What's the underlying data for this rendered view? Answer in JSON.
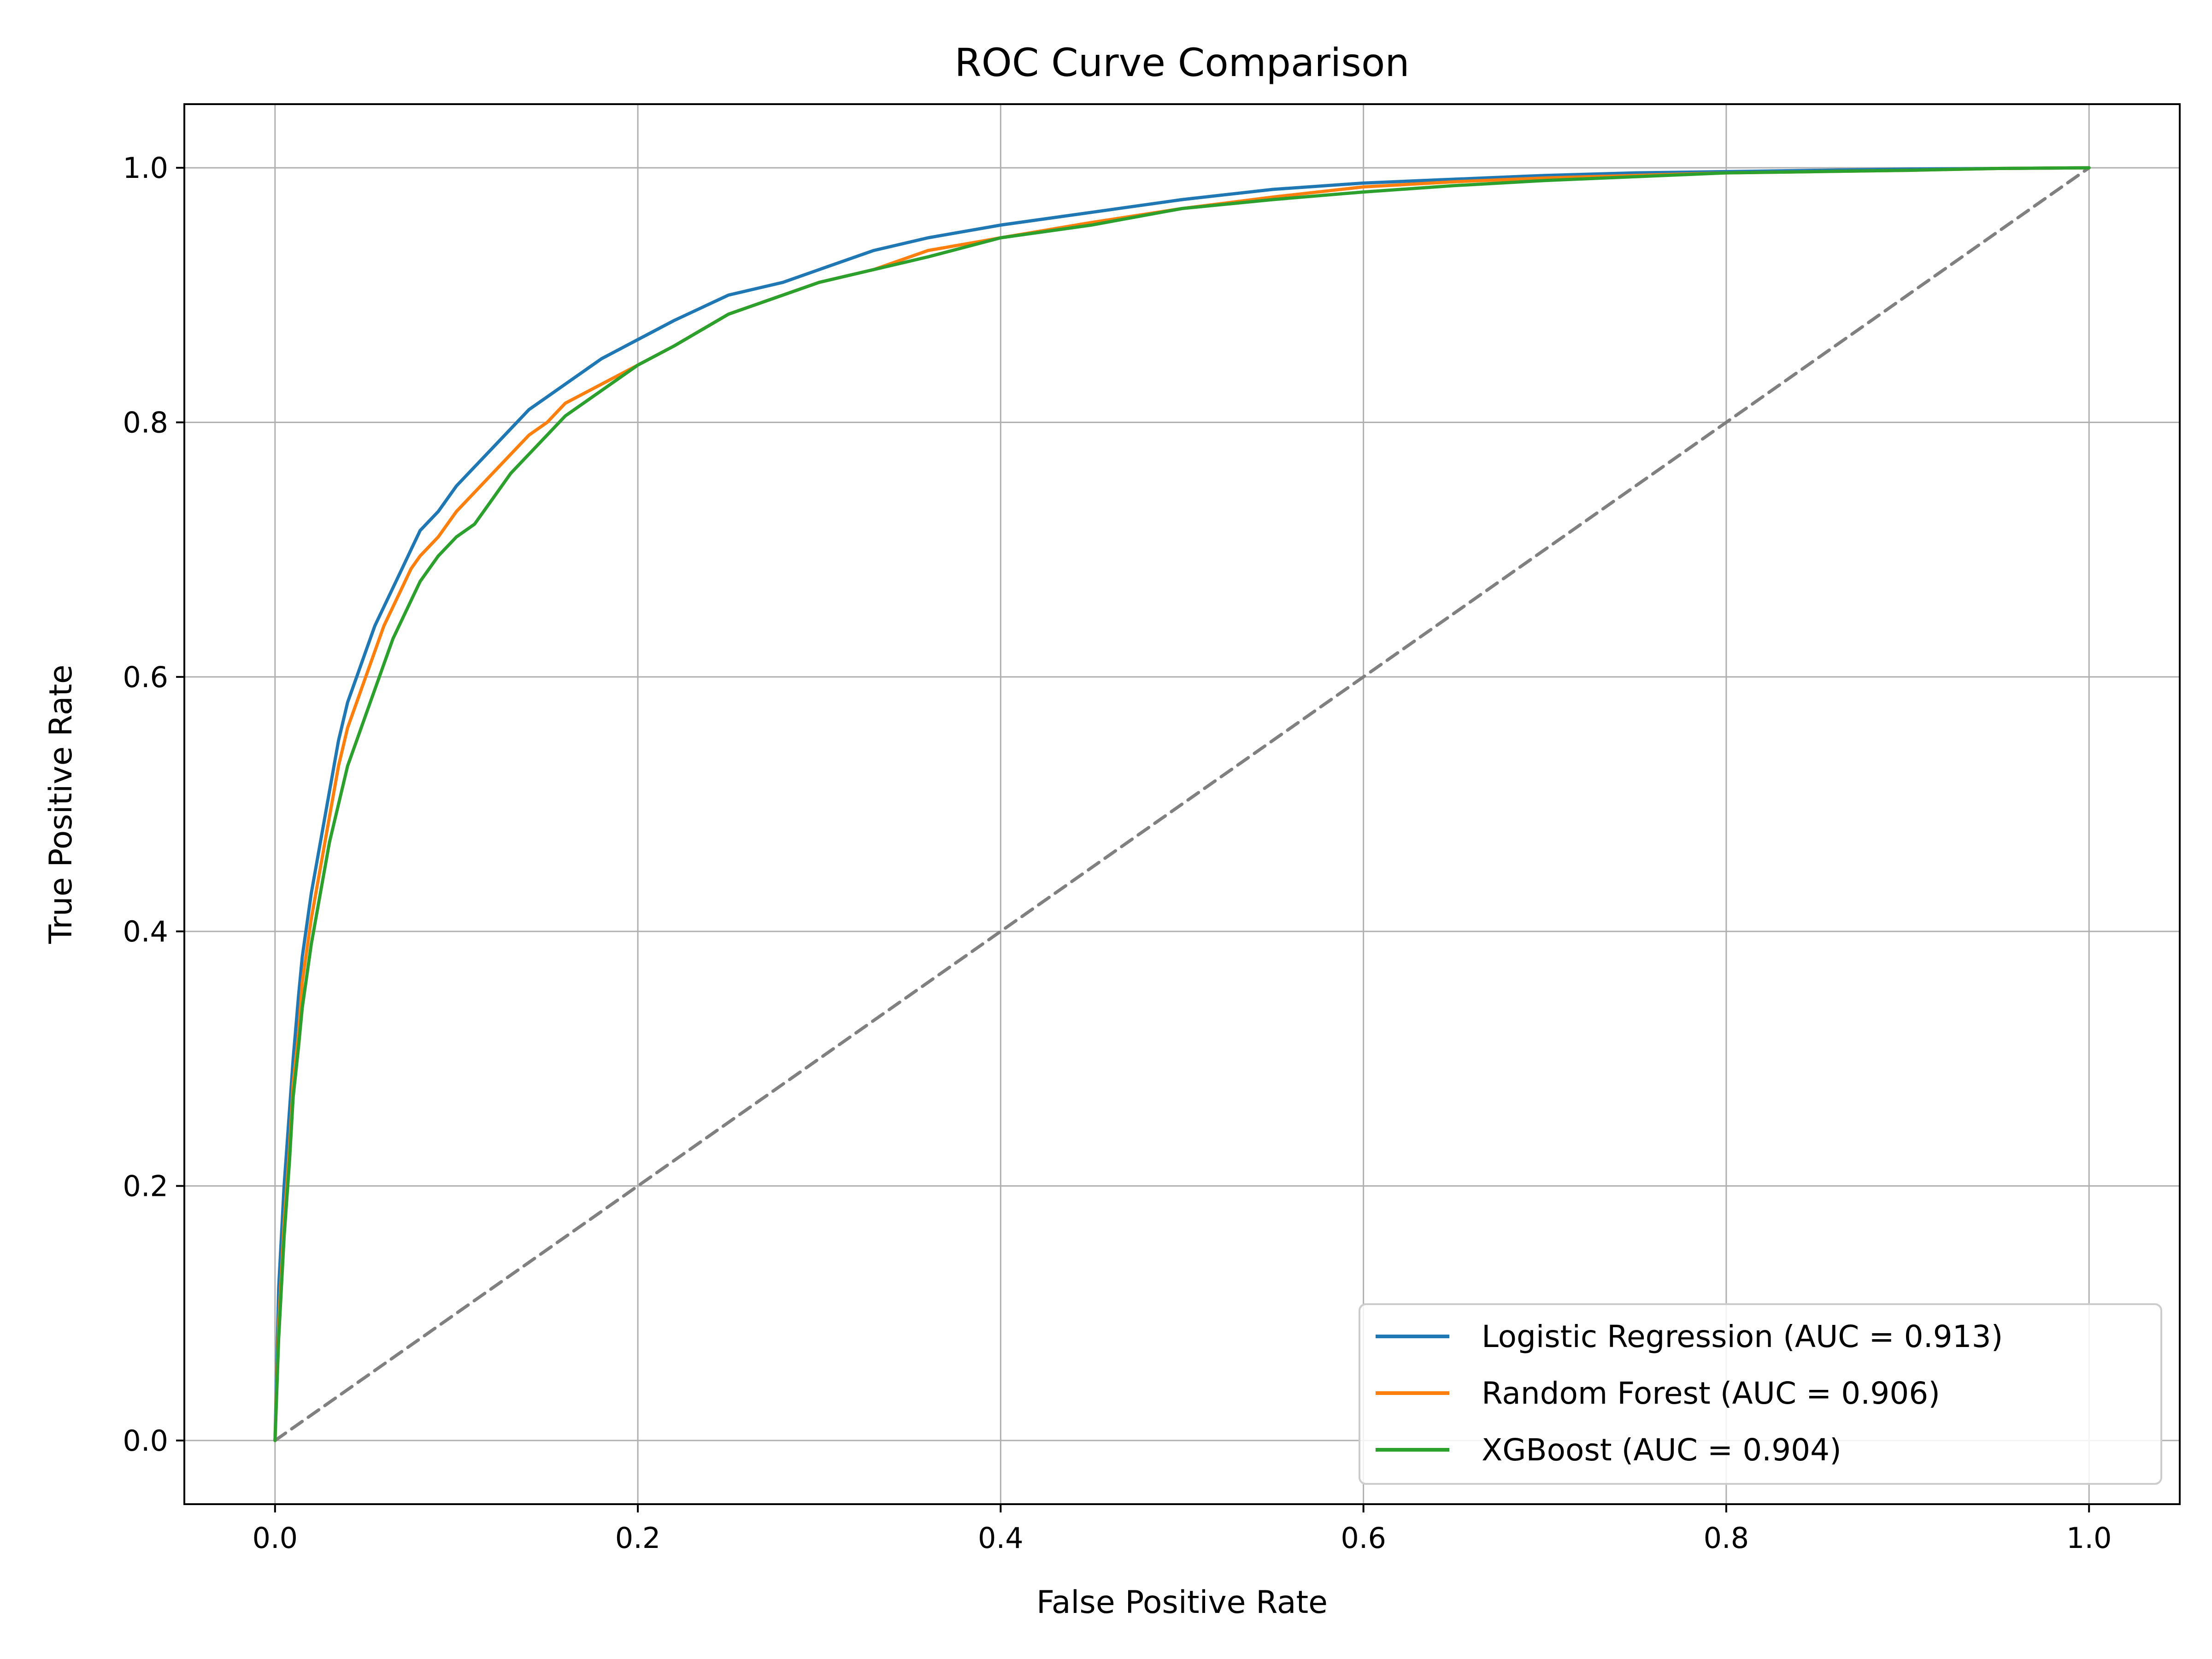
{
  "chart_data": {
    "type": "line",
    "title": "ROC Curve Comparison",
    "xlabel": "False Positive Rate",
    "ylabel": "True Positive Rate",
    "xlim": [
      -0.05,
      1.05
    ],
    "ylim": [
      -0.05,
      1.05
    ],
    "x_ticks": [
      0.0,
      0.2,
      0.4,
      0.6,
      0.8,
      1.0
    ],
    "y_ticks": [
      0.0,
      0.2,
      0.4,
      0.6,
      0.8,
      1.0
    ],
    "x_tick_labels": [
      "0.0",
      "0.2",
      "0.4",
      "0.6",
      "0.8",
      "1.0"
    ],
    "y_tick_labels": [
      "0.0",
      "0.2",
      "0.4",
      "0.6",
      "0.8",
      "1.0"
    ],
    "grid": true,
    "legend_position": "bottom-right",
    "series": [
      {
        "name": "Logistic Regression (AUC = 0.913)",
        "color": "#1f77b4",
        "style": "solid",
        "x": [
          0.0,
          0.002,
          0.005,
          0.008,
          0.01,
          0.013,
          0.015,
          0.02,
          0.025,
          0.03,
          0.035,
          0.04,
          0.045,
          0.05,
          0.055,
          0.06,
          0.065,
          0.07,
          0.075,
          0.08,
          0.09,
          0.1,
          0.11,
          0.12,
          0.13,
          0.14,
          0.15,
          0.16,
          0.18,
          0.2,
          0.22,
          0.25,
          0.28,
          0.3,
          0.33,
          0.36,
          0.4,
          0.45,
          0.5,
          0.55,
          0.6,
          0.65,
          0.7,
          0.75,
          0.8,
          0.85,
          0.9,
          0.95,
          1.0
        ],
        "y": [
          0.0,
          0.12,
          0.2,
          0.26,
          0.3,
          0.35,
          0.38,
          0.43,
          0.47,
          0.51,
          0.55,
          0.58,
          0.6,
          0.62,
          0.64,
          0.655,
          0.67,
          0.685,
          0.7,
          0.715,
          0.73,
          0.75,
          0.765,
          0.78,
          0.795,
          0.81,
          0.82,
          0.83,
          0.85,
          0.865,
          0.88,
          0.9,
          0.91,
          0.92,
          0.935,
          0.945,
          0.955,
          0.965,
          0.975,
          0.983,
          0.988,
          0.991,
          0.994,
          0.996,
          0.997,
          0.998,
          0.999,
          0.9995,
          1.0
        ]
      },
      {
        "name": "Random Forest (AUC = 0.906)",
        "color": "#ff7f0e",
        "style": "solid",
        "x": [
          0.0,
          0.002,
          0.005,
          0.008,
          0.01,
          0.013,
          0.015,
          0.02,
          0.025,
          0.03,
          0.035,
          0.04,
          0.045,
          0.05,
          0.055,
          0.06,
          0.065,
          0.07,
          0.075,
          0.08,
          0.09,
          0.1,
          0.11,
          0.12,
          0.13,
          0.14,
          0.15,
          0.16,
          0.18,
          0.2,
          0.22,
          0.25,
          0.28,
          0.3,
          0.33,
          0.36,
          0.4,
          0.45,
          0.5,
          0.55,
          0.6,
          0.65,
          0.7,
          0.75,
          0.8,
          0.85,
          0.9,
          0.95,
          1.0
        ],
        "y": [
          0.0,
          0.09,
          0.17,
          0.23,
          0.28,
          0.32,
          0.36,
          0.41,
          0.45,
          0.49,
          0.53,
          0.56,
          0.58,
          0.6,
          0.62,
          0.64,
          0.655,
          0.67,
          0.685,
          0.695,
          0.71,
          0.73,
          0.745,
          0.76,
          0.775,
          0.79,
          0.8,
          0.815,
          0.83,
          0.845,
          0.86,
          0.885,
          0.9,
          0.91,
          0.92,
          0.935,
          0.945,
          0.957,
          0.968,
          0.977,
          0.985,
          0.989,
          0.992,
          0.994,
          0.996,
          0.997,
          0.998,
          0.9995,
          1.0
        ]
      },
      {
        "name": "XGBoost (AUC = 0.904)",
        "color": "#2ca02c",
        "style": "solid",
        "x": [
          0.0,
          0.002,
          0.005,
          0.008,
          0.01,
          0.013,
          0.015,
          0.02,
          0.025,
          0.03,
          0.035,
          0.04,
          0.045,
          0.05,
          0.055,
          0.06,
          0.065,
          0.07,
          0.075,
          0.08,
          0.09,
          0.1,
          0.11,
          0.12,
          0.13,
          0.14,
          0.15,
          0.16,
          0.18,
          0.2,
          0.22,
          0.25,
          0.28,
          0.3,
          0.33,
          0.36,
          0.4,
          0.45,
          0.5,
          0.55,
          0.6,
          0.65,
          0.7,
          0.75,
          0.8,
          0.85,
          0.9,
          0.95,
          1.0
        ],
        "y": [
          0.0,
          0.08,
          0.16,
          0.22,
          0.27,
          0.31,
          0.34,
          0.39,
          0.43,
          0.47,
          0.5,
          0.53,
          0.55,
          0.57,
          0.59,
          0.61,
          0.63,
          0.645,
          0.66,
          0.675,
          0.695,
          0.71,
          0.72,
          0.74,
          0.76,
          0.775,
          0.79,
          0.805,
          0.825,
          0.845,
          0.86,
          0.885,
          0.9,
          0.91,
          0.92,
          0.93,
          0.945,
          0.955,
          0.968,
          0.975,
          0.981,
          0.986,
          0.99,
          0.993,
          0.996,
          0.997,
          0.998,
          0.9995,
          1.0
        ]
      },
      {
        "name": "",
        "color": "#808080",
        "style": "dashed",
        "x": [
          0.0,
          1.0
        ],
        "y": [
          0.0,
          1.0
        ]
      }
    ]
  }
}
